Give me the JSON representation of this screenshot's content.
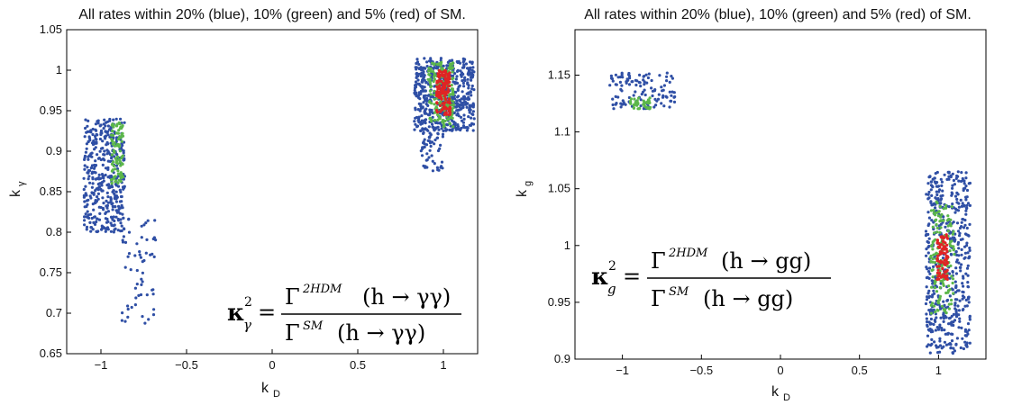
{
  "colors": {
    "blue": "#2f4fa5",
    "green": "#5cb74a",
    "red": "#e02424",
    "axis": "#000000"
  },
  "chart_data": [
    {
      "type": "scatter",
      "title": "All rates within 20% (blue), 10% (green) and 5% (red) of SM.",
      "xlabel": "k",
      "xlabel_sub": "D",
      "ylabel": "k",
      "ylabel_sub": "γ",
      "xlim": [
        -1.2,
        1.2
      ],
      "ylim": [
        0.65,
        1.05
      ],
      "xticks": [
        -1,
        -0.5,
        0,
        0.5,
        1
      ],
      "xtick_labels": [
        "−1",
        "−0.5",
        "0",
        "0.5",
        "1"
      ],
      "yticks": [
        0.65,
        0.7,
        0.75,
        0.8,
        0.85,
        0.9,
        0.95,
        1.0,
        1.05
      ],
      "ytick_labels": [
        "0.65",
        "0.7",
        "0.75",
        "0.8",
        "0.85",
        "0.9",
        "0.95",
        "1",
        "1.05"
      ],
      "legend": "none",
      "series": [
        {
          "name": "blue",
          "color": "#2f4fa5",
          "regions": [
            {
              "x": [
                -1.1,
                -0.86
              ],
              "y": [
                0.8,
                0.94
              ],
              "density": 420
            },
            {
              "x": [
                -0.88,
                -0.68
              ],
              "y": [
                0.685,
                0.82
              ],
              "density": 60
            },
            {
              "x": [
                0.83,
                1.18
              ],
              "y": [
                0.925,
                1.015
              ],
              "density": 520
            },
            {
              "x": [
                0.87,
                1.0
              ],
              "y": [
                0.875,
                0.93
              ],
              "density": 60
            }
          ]
        },
        {
          "name": "green",
          "color": "#5cb74a",
          "regions": [
            {
              "x": [
                -0.94,
                -0.87
              ],
              "y": [
                0.86,
                0.935
              ],
              "density": 90
            },
            {
              "x": [
                0.91,
                1.06
              ],
              "y": [
                0.93,
                1.01
              ],
              "density": 160
            }
          ]
        },
        {
          "name": "red",
          "color": "#e02424",
          "regions": [
            {
              "x": [
                0.96,
                1.04
              ],
              "y": [
                0.945,
                1.0
              ],
              "density": 140
            }
          ]
        }
      ],
      "annotation": {
        "lhs": "κ",
        "lhs_sub": "γ",
        "lhs_sup": "2",
        "num": "Γ",
        "num_sup": "2HDM",
        "den": "Γ",
        "den_sup": "SM",
        "process": "(h → γγ)"
      }
    },
    {
      "type": "scatter",
      "title": "All rates within 20% (blue), 10% (green) and 5% (red) of SM.",
      "xlabel": "k",
      "xlabel_sub": "D",
      "ylabel": "k",
      "ylabel_sub": "g",
      "xlim": [
        -1.3,
        1.3
      ],
      "ylim": [
        0.9,
        1.19
      ],
      "xticks": [
        -1,
        -0.5,
        0,
        0.5,
        1
      ],
      "xtick_labels": [
        "−1",
        "−0.5",
        "0",
        "0.5",
        "1"
      ],
      "yticks": [
        0.9,
        0.95,
        1.0,
        1.05,
        1.1,
        1.15
      ],
      "ytick_labels": [
        "0.9",
        "0.95",
        "1",
        "1.05",
        "1.1",
        "1.15"
      ],
      "legend": "none",
      "series": [
        {
          "name": "blue",
          "color": "#2f4fa5",
          "regions": [
            {
              "x": [
                -1.08,
                -0.66
              ],
              "y": [
                1.12,
                1.152
              ],
              "density": 120
            },
            {
              "x": [
                0.92,
                1.2
              ],
              "y": [
                0.905,
                1.065
              ],
              "density": 520
            }
          ]
        },
        {
          "name": "green",
          "color": "#5cb74a",
          "regions": [
            {
              "x": [
                -0.95,
                -0.82
              ],
              "y": [
                1.12,
                1.13
              ],
              "density": 40
            },
            {
              "x": [
                0.95,
                1.1
              ],
              "y": [
                0.94,
                1.04
              ],
              "density": 140
            }
          ]
        },
        {
          "name": "red",
          "color": "#e02424",
          "regions": [
            {
              "x": [
                0.99,
                1.06
              ],
              "y": [
                0.97,
                1.01
              ],
              "density": 90
            }
          ]
        }
      ],
      "annotation": {
        "lhs": "κ",
        "lhs_sub": "g",
        "lhs_sup": "2",
        "num": "Γ",
        "num_sup": "2HDM",
        "den": "Γ",
        "den_sup": "SM",
        "process": "(h → gg)"
      }
    }
  ]
}
